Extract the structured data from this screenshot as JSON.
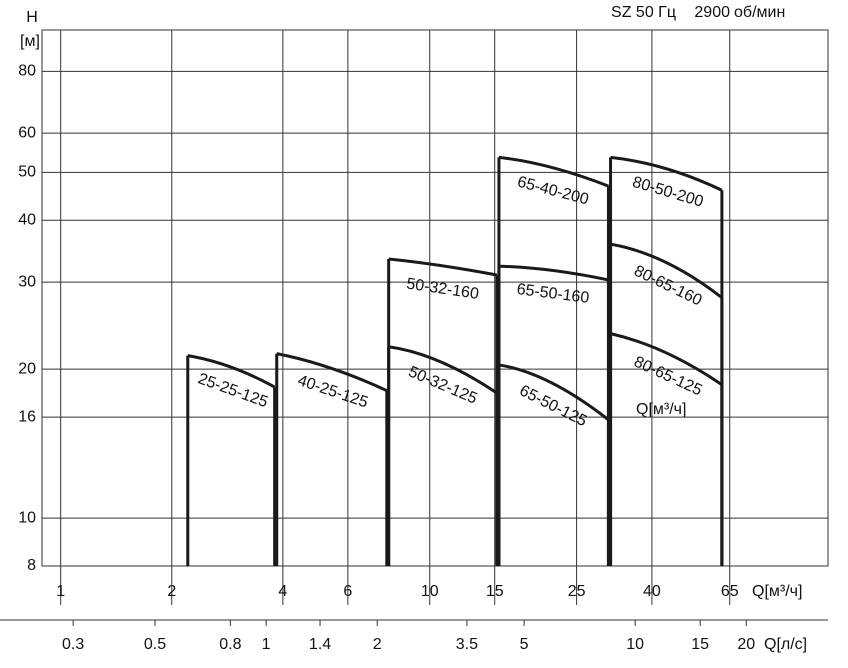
{
  "chart_data": {
    "type": "line",
    "title": "SZ 50 Гц",
    "speed": "2900",
    "speed_unit": "об/мин",
    "y_label": "H",
    "y_unit": "[м]",
    "x_label": "Q[м³/ч]",
    "x2_label": "Q[л/с]",
    "annotation": "Q[м³/ч]",
    "log_x": true,
    "log_y": true,
    "grid": true,
    "color": "#1a1a1a",
    "xlim": [
      0.89,
      120
    ],
    "xticks": [
      1,
      2,
      4,
      6,
      10,
      15,
      25,
      40,
      65
    ],
    "x2lim": [
      0.247,
      33.3
    ],
    "x2ticks": [
      0.3,
      0.5,
      0.8,
      1,
      1.4,
      2,
      3.5,
      5,
      10,
      15,
      20
    ],
    "ylim": [
      8,
      97
    ],
    "yticks": [
      8,
      10,
      16,
      20,
      30,
      40,
      50,
      60,
      80
    ],
    "series": [
      {
        "name": "25-25-125",
        "x": [
          2.21,
          2.89,
          3.8
        ],
        "values": [
          21.3,
          20.2,
          18.4
        ]
      },
      {
        "name": "40-25-125",
        "x": [
          3.85,
          5.39,
          7.65
        ],
        "values": [
          21.5,
          20.1,
          18.1
        ]
      },
      {
        "name": "50-32-125",
        "x": [
          7.74,
          10.7,
          15.2
        ],
        "values": [
          22.2,
          20.7,
          17.9
        ]
      },
      {
        "name": "50-32-160",
        "x": [
          7.74,
          10.7,
          15.2
        ],
        "values": [
          33.4,
          32.4,
          31.0
        ]
      },
      {
        "name": "65-50-125",
        "x": [
          15.4,
          21.3,
          30.5
        ],
        "values": [
          20.4,
          18.8,
          15.8
        ]
      },
      {
        "name": "65-50-160",
        "x": [
          15.4,
          21.3,
          30.5
        ],
        "values": [
          32.3,
          31.7,
          30.3
        ]
      },
      {
        "name": "65-40-200",
        "x": [
          15.4,
          21.3,
          30.5
        ],
        "values": [
          53.6,
          51.2,
          46.9
        ]
      },
      {
        "name": "80-65-125",
        "x": [
          30.9,
          43.6,
          61.9
        ],
        "values": [
          23.6,
          21.6,
          18.6
        ]
      },
      {
        "name": "80-65-160",
        "x": [
          30.9,
          43.6,
          61.9
        ],
        "values": [
          35.8,
          32.9,
          27.9
        ]
      },
      {
        "name": "80-50-200",
        "x": [
          30.9,
          43.6,
          61.9
        ],
        "values": [
          53.6,
          50.9,
          46.0
        ]
      }
    ]
  }
}
